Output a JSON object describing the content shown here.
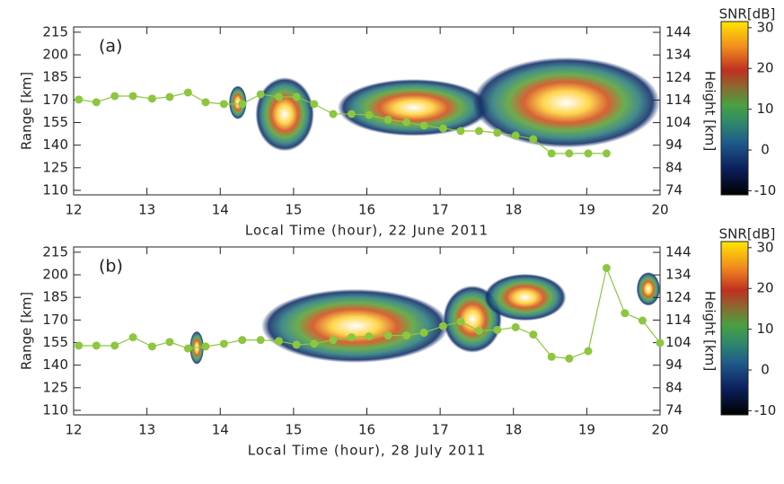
{
  "chart_data": [
    {
      "type": "line",
      "panel_label": "(a)",
      "x_label": "Local Time (hour), 22 June 2011",
      "y_label": "Range [km]",
      "y2_label": "Height [km]",
      "xlim": [
        12,
        20
      ],
      "xticks": [
        12,
        13,
        14,
        15,
        16,
        17,
        18,
        19,
        20
      ],
      "ylim": [
        107,
        218.5
      ],
      "yticks": [
        110,
        125,
        140,
        155,
        170,
        185,
        200,
        215
      ],
      "y2lim": [
        72,
        146.4
      ],
      "y2ticks": [
        74,
        84,
        94,
        104,
        114,
        124,
        134,
        144
      ],
      "colorbar_label": "SNR[dB]",
      "clim": [
        -11,
        31.5
      ],
      "cticks": [
        -10,
        0,
        10,
        20,
        30
      ],
      "series": [
        {
          "color": "#8dc63f",
          "x": [
            12.07,
            12.31,
            12.56,
            12.81,
            13.07,
            13.31,
            13.56,
            13.8,
            14.05,
            14.3,
            14.55,
            14.8,
            15.04,
            15.28,
            15.54,
            15.79,
            16.03,
            16.29,
            16.54,
            16.78,
            17.04,
            17.28,
            17.53,
            17.78,
            18.03,
            18.27,
            18.52,
            18.76,
            19.02,
            19.27
          ],
          "values": [
            170.3,
            168.5,
            172.6,
            172.6,
            170.9,
            172,
            175,
            168.5,
            167.3,
            167.3,
            173.8,
            172,
            172,
            167.3,
            160.7,
            160.7,
            160,
            157,
            155.3,
            153,
            151.2,
            149.4,
            149.4,
            148.2,
            146.4,
            144,
            134.5,
            134.5,
            134.5,
            134.5
          ]
        }
      ]
    },
    {
      "type": "line",
      "panel_label": "(b)",
      "x_label": "Local Time (hour), 28 July 2011",
      "y_label": "Range [km]",
      "y2_label": "Height [km]",
      "xlim": [
        12,
        20
      ],
      "xticks": [
        12,
        13,
        14,
        15,
        16,
        17,
        18,
        19,
        20
      ],
      "ylim": [
        107,
        218.5
      ],
      "yticks": [
        110,
        125,
        140,
        155,
        170,
        185,
        200,
        215
      ],
      "y2lim": [
        72,
        146.4
      ],
      "y2ticks": [
        74,
        84,
        94,
        104,
        114,
        124,
        134,
        144
      ],
      "colorbar_label": "SNR[dB]",
      "clim": [
        -11,
        31.5
      ],
      "cticks": [
        -10,
        0,
        10,
        20,
        30
      ],
      "series": [
        {
          "color": "#8dc63f",
          "x": [
            12.07,
            12.31,
            12.56,
            12.81,
            13.07,
            13.31,
            13.56,
            13.8,
            14.05,
            14.3,
            14.55,
            14.8,
            15.04,
            15.28,
            15.54,
            15.79,
            16.03,
            16.29,
            16.54,
            16.78,
            17.04,
            17.28,
            17.53,
            17.78,
            18.03,
            18.27,
            18.52,
            18.76,
            19.02,
            19.27,
            19.52,
            19.76,
            20.0
          ],
          "values": [
            153,
            153,
            153,
            158.5,
            152.4,
            155.4,
            151.1,
            152.4,
            154.2,
            156.7,
            156.7,
            156,
            153.6,
            154.2,
            156.7,
            158.5,
            159.1,
            159.7,
            159.7,
            161.6,
            165.9,
            168.9,
            162.8,
            163.4,
            165.2,
            160.3,
            145.6,
            144.4,
            149.3,
            204.5,
            174.5,
            169.6,
            154.8
          ]
        }
      ]
    }
  ]
}
